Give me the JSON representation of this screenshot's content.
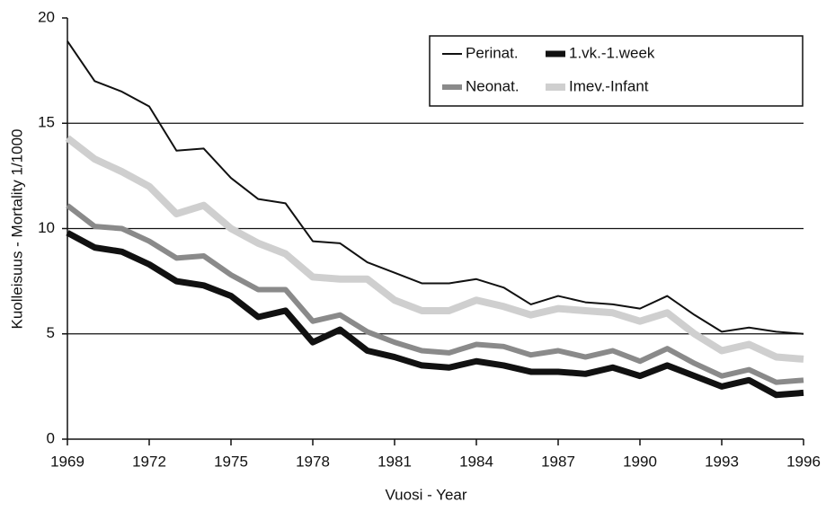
{
  "chart_data": {
    "type": "line",
    "x_label": "Vuosi - Year",
    "y_label": "Kuolleisuus - Mortality 1/1000",
    "x": [
      1969,
      1970,
      1971,
      1972,
      1973,
      1974,
      1975,
      1976,
      1977,
      1978,
      1979,
      1980,
      1981,
      1982,
      1983,
      1984,
      1985,
      1986,
      1987,
      1988,
      1989,
      1990,
      1991,
      1992,
      1993,
      1994,
      1995,
      1996
    ],
    "series": [
      {
        "name": "Perinat.",
        "color": "#111111",
        "values": [
          18.9,
          17.0,
          16.5,
          15.8,
          13.7,
          13.8,
          12.4,
          11.4,
          11.2,
          9.4,
          9.3,
          8.4,
          7.9,
          7.4,
          7.4,
          7.6,
          7.2,
          6.4,
          6.8,
          6.5,
          6.4,
          6.2,
          6.8,
          5.9,
          5.1,
          5.3,
          5.1,
          5.0
        ]
      },
      {
        "name": "1.vk.-1.week",
        "color": "#111111",
        "values": [
          9.8,
          9.1,
          8.9,
          8.3,
          7.5,
          7.3,
          6.8,
          5.8,
          6.1,
          4.6,
          5.2,
          4.2,
          3.9,
          3.5,
          3.4,
          3.7,
          3.5,
          3.2,
          3.2,
          3.1,
          3.4,
          3.0,
          3.5,
          3.0,
          2.5,
          2.8,
          2.1,
          2.2
        ]
      },
      {
        "name": "Neonat.",
        "color": "#8a8a8a",
        "values": [
          11.1,
          10.1,
          10.0,
          9.4,
          8.6,
          8.7,
          7.8,
          7.1,
          7.1,
          5.6,
          5.9,
          5.1,
          4.6,
          4.2,
          4.1,
          4.5,
          4.4,
          4.0,
          4.2,
          3.9,
          4.2,
          3.7,
          4.3,
          3.6,
          3.0,
          3.3,
          2.7,
          2.8
        ]
      },
      {
        "name": "Imev.-Infant",
        "color": "#cfcfcf",
        "values": [
          14.3,
          13.3,
          12.7,
          12.0,
          10.7,
          11.1,
          10.0,
          9.3,
          8.8,
          7.7,
          7.6,
          7.6,
          6.6,
          6.1,
          6.1,
          6.6,
          6.3,
          5.9,
          6.2,
          6.1,
          6.0,
          5.6,
          6.0,
          5.0,
          4.2,
          4.5,
          3.9,
          3.8
        ]
      }
    ],
    "xlim": [
      1969,
      1996
    ],
    "xticks": [
      1969,
      1972,
      1975,
      1978,
      1981,
      1984,
      1987,
      1990,
      1993,
      1996
    ],
    "ylim": [
      0,
      20
    ],
    "yticks": [
      0,
      5,
      10,
      15,
      20
    ],
    "grid": true,
    "legend": "top-right"
  }
}
